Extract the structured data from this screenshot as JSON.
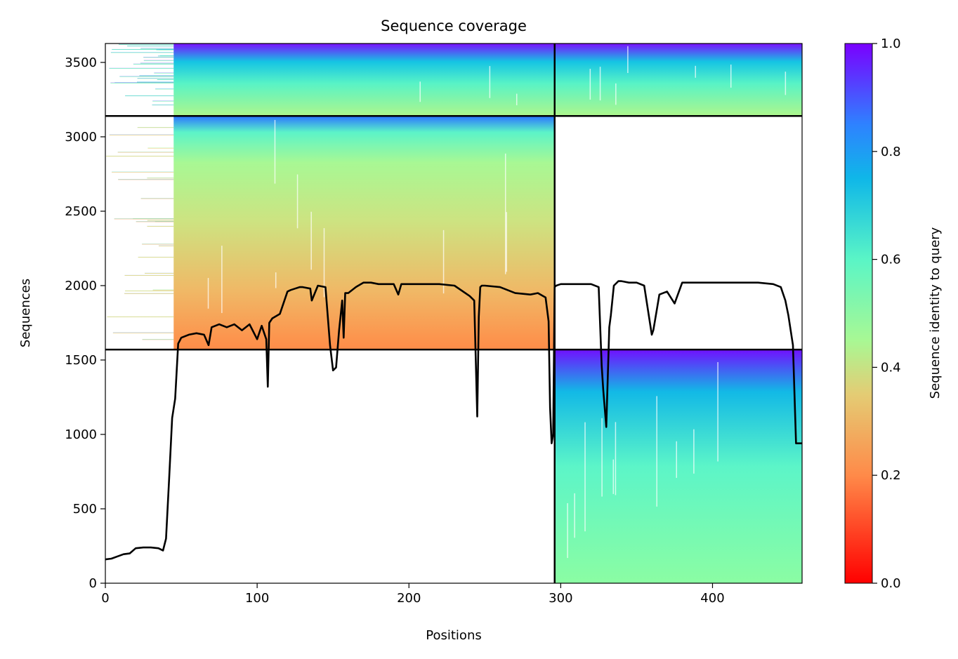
{
  "chart_data": {
    "type": "heatmap",
    "title": "Sequence coverage",
    "xlabel": "Positions",
    "ylabel": "Sequences",
    "xlim": [
      0,
      459
    ],
    "ylim": [
      0,
      3627
    ],
    "xticks": [
      0,
      100,
      200,
      300,
      400
    ],
    "yticks": [
      0,
      500,
      1000,
      1500,
      2000,
      2500,
      3000,
      3500
    ],
    "colorbar": {
      "label": "Sequence identity to query",
      "range": [
        0.0,
        1.0
      ],
      "ticks": [
        "0.0",
        "0.2",
        "0.4",
        "0.6",
        "0.8",
        "1.0"
      ],
      "colormap": "rainbow_r"
    },
    "separator_lines": {
      "vertical_x": [
        296
      ],
      "horizontal_y": [
        1570,
        3140
      ]
    },
    "blocks": [
      {
        "name": "block-lower-right",
        "x": [
          296,
          459
        ],
        "y": [
          0,
          1570
        ],
        "identity_bottom": 0.45,
        "identity_top": 1.0,
        "coverage_start": 296
      },
      {
        "name": "block-middle-left",
        "x": [
          0,
          296
        ],
        "y": [
          1570,
          3140
        ],
        "identity_bottom": 0.22,
        "identity_top": 1.0,
        "coverage_start": 45
      },
      {
        "name": "block-top-full",
        "x": [
          0,
          459
        ],
        "y": [
          3140,
          3627
        ],
        "identity_bottom": 0.42,
        "identity_top": 1.0,
        "coverage_start": 45
      }
    ],
    "coverage_line": {
      "x": [
        0,
        4,
        8,
        12,
        16,
        20,
        25,
        30,
        35,
        38,
        40,
        42,
        44,
        46,
        48,
        50,
        55,
        60,
        65,
        68,
        70,
        75,
        80,
        85,
        90,
        95,
        100,
        103,
        106,
        107,
        108,
        110,
        115,
        120,
        122,
        125,
        128,
        130,
        135,
        136,
        140,
        145,
        148,
        150,
        152,
        154,
        156,
        157,
        158,
        160,
        165,
        170,
        175,
        180,
        190,
        193,
        195,
        200,
        210,
        220,
        230,
        240,
        243,
        245,
        246,
        247,
        248,
        250,
        260,
        270,
        280,
        285,
        290,
        292,
        293,
        294,
        295,
        296,
        297,
        300,
        310,
        320,
        325,
        327,
        328,
        330,
        332,
        333,
        335,
        338,
        340,
        345,
        350,
        355,
        360,
        361,
        362,
        365,
        370,
        375,
        380,
        390,
        400,
        410,
        420,
        430,
        440,
        445,
        448,
        450,
        453,
        455,
        457,
        459
      ],
      "y": [
        160,
        165,
        180,
        195,
        200,
        235,
        240,
        240,
        235,
        220,
        300,
        700,
        1110,
        1240,
        1610,
        1650,
        1670,
        1680,
        1670,
        1600,
        1720,
        1740,
        1720,
        1740,
        1700,
        1740,
        1640,
        1730,
        1640,
        1320,
        1750,
        1780,
        1810,
        1960,
        1970,
        1980,
        1990,
        1990,
        1980,
        1900,
        2000,
        1990,
        1600,
        1430,
        1450,
        1700,
        1900,
        1650,
        1950,
        1950,
        1990,
        2020,
        2020,
        2010,
        2010,
        1940,
        2010,
        2010,
        2010,
        2010,
        2000,
        1930,
        1900,
        1120,
        1790,
        1990,
        2000,
        2000,
        1990,
        1950,
        1940,
        1950,
        1920,
        1760,
        1180,
        940,
        1000,
        1990,
        2000,
        2010,
        2010,
        2010,
        1990,
        1460,
        1300,
        1050,
        1720,
        1800,
        2000,
        2030,
        2030,
        2020,
        2020,
        2000,
        1670,
        1700,
        1760,
        1940,
        1960,
        1880,
        2020,
        2020,
        2020,
        2020,
        2020,
        2020,
        2010,
        1990,
        1900,
        1800,
        1600,
        940,
        940,
        940
      ]
    }
  }
}
